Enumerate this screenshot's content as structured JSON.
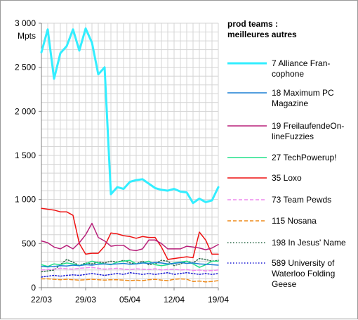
{
  "chart_data": {
    "type": "line",
    "title": "prod teams : meilleures autres",
    "title_lines": [
      "prod teams :",
      "meilleures autres"
    ],
    "ylabel": "Mpts",
    "ylim": [
      0,
      3000
    ],
    "y_ticks": [
      0,
      500,
      1000,
      1500,
      2000,
      2500,
      3000
    ],
    "y_tick_labels": [
      "0",
      "500",
      "1 000",
      "1 500",
      "2 000",
      "2 500",
      "3 000"
    ],
    "x_tick_labels": [
      "22/03",
      "29/03",
      "05/04",
      "12/04",
      "19/04"
    ],
    "x_tick_index": [
      0,
      7,
      14,
      21,
      28
    ],
    "grid": true,
    "legend_position": "right",
    "series": [
      {
        "name": "7 Alliance Francophone",
        "legend_lines": [
          "7 Alliance Fran-",
          "cophone"
        ],
        "color": "#33eeff",
        "dash": "solid",
        "width": 3,
        "values": [
          2670,
          2930,
          2370,
          2660,
          2740,
          2930,
          2690,
          2940,
          2780,
          2420,
          2500,
          1060,
          1140,
          1120,
          1200,
          1220,
          1230,
          1180,
          1130,
          1110,
          1100,
          1120,
          1090,
          1080,
          960,
          1010,
          970,
          990,
          1140
        ]
      },
      {
        "name": "18 Maximum PC Magazine",
        "legend_lines": [
          "18 Maximum PC",
          "Magazine"
        ],
        "color": "#1a7fd4",
        "dash": "solid",
        "width": 1.5,
        "values": [
          240,
          235,
          240,
          250,
          245,
          255,
          250,
          260,
          255,
          265,
          270,
          265,
          270,
          275,
          265,
          270,
          280,
          275,
          285,
          280,
          270,
          275,
          285,
          275,
          280,
          270,
          265,
          260,
          255
        ]
      },
      {
        "name": "19 FreilaufendeOnlineFuzzies",
        "legend_lines": [
          "19 FreilaufendeOn-",
          "lineFuzzies"
        ],
        "color": "#b8207a",
        "dash": "solid",
        "width": 1.5,
        "values": [
          530,
          510,
          460,
          440,
          480,
          440,
          510,
          600,
          730,
          570,
          530,
          470,
          480,
          480,
          430,
          420,
          440,
          540,
          540,
          500,
          440,
          440,
          440,
          470,
          460,
          450,
          430,
          450,
          490
        ]
      },
      {
        "name": "27 TechPowerup!",
        "legend_lines": [
          "27 TechPowerup!"
        ],
        "color": "#22e08a",
        "dash": "solid",
        "width": 1.5,
        "values": [
          260,
          240,
          270,
          260,
          280,
          270,
          250,
          270,
          300,
          280,
          270,
          260,
          290,
          300,
          310,
          270,
          280,
          300,
          260,
          250,
          260,
          280,
          290,
          300,
          270,
          230,
          260,
          300,
          300
        ]
      },
      {
        "name": "35 Loxo",
        "legend_lines": [
          "35 Loxo"
        ],
        "color": "#ee1111",
        "dash": "solid",
        "width": 1.5,
        "values": [
          900,
          890,
          880,
          860,
          860,
          820,
          500,
          380,
          390,
          390,
          470,
          620,
          610,
          590,
          580,
          560,
          580,
          570,
          570,
          460,
          320,
          330,
          340,
          350,
          340,
          630,
          540,
          380,
          380
        ]
      },
      {
        "name": "73 Team Pewds",
        "legend_lines": [
          "73 Team Pewds"
        ],
        "color": "#ee88ee",
        "dash": "dashed",
        "width": 1.5,
        "values": [
          200,
          205,
          210,
          220,
          215,
          210,
          220,
          225,
          230,
          220,
          210,
          215,
          220,
          210,
          205,
          215,
          210,
          205,
          215,
          200,
          205,
          210,
          200,
          205,
          195,
          200,
          190,
          195,
          200
        ]
      },
      {
        "name": "115 Nosana",
        "legend_lines": [
          "115 Nosana"
        ],
        "color": "#ee8a1a",
        "dash": "dashed",
        "width": 1.5,
        "values": [
          100,
          100,
          95,
          90,
          95,
          90,
          85,
          90,
          95,
          90,
          85,
          90,
          90,
          85,
          80,
          85,
          80,
          90,
          95,
          85,
          80,
          95,
          100,
          95,
          70,
          75,
          65,
          70,
          80
        ]
      },
      {
        "name": "198 In Jesus' Name",
        "legend_lines": [
          "198 In Jesus' Name"
        ],
        "color": "#2e6b4a",
        "dash": "dotted",
        "width": 1.5,
        "values": [
          180,
          190,
          200,
          260,
          320,
          290,
          250,
          280,
          270,
          290,
          280,
          300,
          290,
          310,
          280,
          270,
          300,
          260,
          270,
          310,
          300,
          250,
          270,
          300,
          280,
          330,
          320,
          300,
          310
        ]
      },
      {
        "name": "589 University of Waterloo Folding Geese",
        "legend_lines": [
          "589 University of",
          "Waterloo Folding",
          "Geese"
        ],
        "color": "#1a1ad4",
        "dash": "dotted",
        "width": 1.5,
        "values": [
          120,
          130,
          140,
          130,
          140,
          145,
          140,
          150,
          160,
          150,
          140,
          150,
          160,
          150,
          170,
          160,
          150,
          160,
          150,
          160,
          170,
          150,
          160,
          170,
          160,
          150,
          160,
          150,
          160
        ]
      }
    ]
  }
}
